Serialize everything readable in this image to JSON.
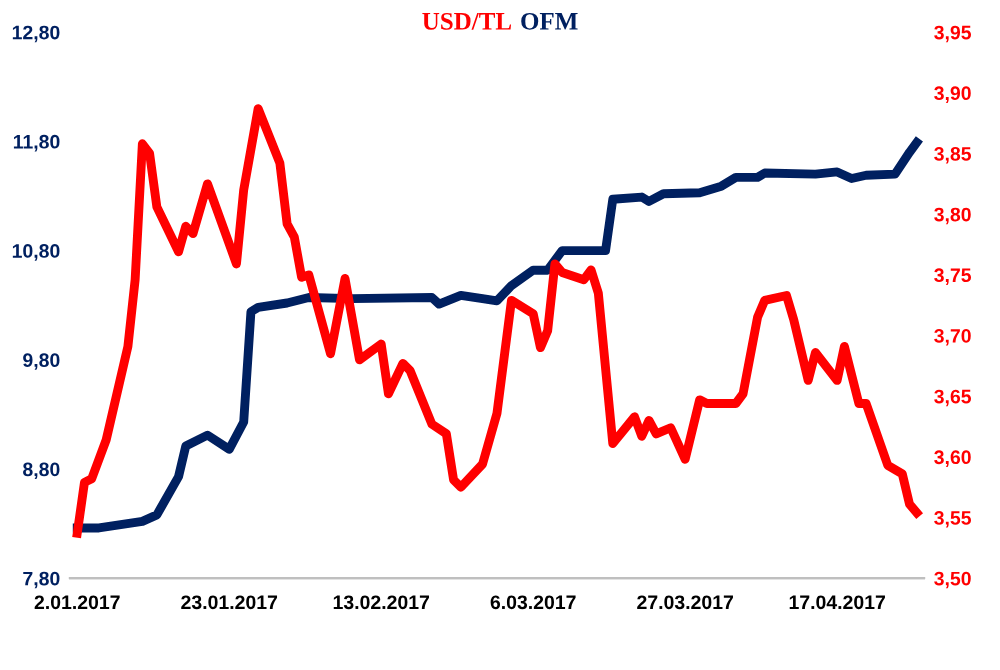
{
  "chart_data": {
    "type": "line",
    "legend": "top",
    "grid": false,
    "marker": "none",
    "line_style": "solid",
    "xlim": [
      "2017-01-01",
      "2017-04-29"
    ],
    "xticks": [
      {
        "value": "2017-01-02",
        "label": "2.01.2017"
      },
      {
        "value": "2017-01-23",
        "label": "23.01.2017"
      },
      {
        "value": "2017-02-13",
        "label": "13.02.2017"
      },
      {
        "value": "2017-03-06",
        "label": "6.03.2017"
      },
      {
        "value": "2017-03-27",
        "label": "27.03.2017"
      },
      {
        "value": "2017-04-17",
        "label": "17.04.2017"
      }
    ],
    "ylim": [
      7.8,
      12.8
    ],
    "yticks": [
      {
        "value": 7.8,
        "label": "7,80"
      },
      {
        "value": 8.8,
        "label": "8,80"
      },
      {
        "value": 9.8,
        "label": "9,80"
      },
      {
        "value": 10.8,
        "label": "10,80"
      },
      {
        "value": 11.8,
        "label": "11,80"
      },
      {
        "value": 12.8,
        "label": "12,80"
      }
    ],
    "y2lim": [
      3.5,
      3.95
    ],
    "y2ticks": [
      {
        "value": 3.5,
        "label": "3,50"
      },
      {
        "value": 3.55,
        "label": "3,55"
      },
      {
        "value": 3.6,
        "label": "3,60"
      },
      {
        "value": 3.65,
        "label": "3,65"
      },
      {
        "value": 3.7,
        "label": "3,70"
      },
      {
        "value": 3.75,
        "label": "3,75"
      },
      {
        "value": 3.8,
        "label": "3,80"
      },
      {
        "value": 3.85,
        "label": "3,85"
      },
      {
        "value": 3.9,
        "label": "3,90"
      },
      {
        "value": 3.95,
        "label": "3,95"
      }
    ],
    "series": [
      {
        "name": "USD/TL",
        "color": "#ff0000",
        "axis": "y2",
        "x": [
          "2017-01-02",
          "2017-01-03",
          "2017-01-04",
          "2017-01-06",
          "2017-01-09",
          "2017-01-10",
          "2017-01-11",
          "2017-01-12",
          "2017-01-13",
          "2017-01-16",
          "2017-01-17",
          "2017-01-18",
          "2017-01-20",
          "2017-01-24",
          "2017-01-25",
          "2017-01-27",
          "2017-01-30",
          "2017-01-31",
          "2017-02-01",
          "2017-02-02",
          "2017-02-03",
          "2017-02-06",
          "2017-02-08",
          "2017-02-10",
          "2017-02-13",
          "2017-02-14",
          "2017-02-16",
          "2017-02-17",
          "2017-02-20",
          "2017-02-22",
          "2017-02-23",
          "2017-02-24",
          "2017-02-27",
          "2017-03-01",
          "2017-03-03",
          "2017-03-06",
          "2017-03-07",
          "2017-03-08",
          "2017-03-09",
          "2017-03-10",
          "2017-03-13",
          "2017-03-14",
          "2017-03-15",
          "2017-03-17",
          "2017-03-20",
          "2017-03-21",
          "2017-03-22",
          "2017-03-23",
          "2017-03-25",
          "2017-03-27",
          "2017-03-29",
          "2017-03-30",
          "2017-04-03",
          "2017-04-04",
          "2017-04-06",
          "2017-04-07",
          "2017-04-10",
          "2017-04-11",
          "2017-04-13",
          "2017-04-14",
          "2017-04-17",
          "2017-04-18",
          "2017-04-20",
          "2017-04-21",
          "2017-04-24",
          "2017-04-26",
          "2017-04-27",
          "2017-04-28"
        ],
        "values": [
          3.537,
          3.579,
          3.582,
          3.614,
          3.691,
          3.746,
          3.858,
          3.85,
          3.806,
          3.769,
          3.79,
          3.784,
          3.825,
          3.759,
          3.82,
          3.887,
          3.842,
          3.792,
          3.781,
          3.748,
          3.75,
          3.685,
          3.747,
          3.68,
          3.693,
          3.652,
          3.677,
          3.671,
          3.627,
          3.619,
          3.581,
          3.575,
          3.594,
          3.636,
          3.729,
          3.718,
          3.69,
          3.704,
          3.759,
          3.752,
          3.746,
          3.754,
          3.735,
          3.611,
          3.633,
          3.617,
          3.63,
          3.619,
          3.624,
          3.598,
          3.647,
          3.644,
          3.644,
          3.652,
          3.715,
          3.729,
          3.733,
          3.713,
          3.663,
          3.686,
          3.663,
          3.691,
          3.644,
          3.644,
          3.593,
          3.586,
          3.561,
          3.554
        ]
      },
      {
        "name": "OFM",
        "color": "#002060",
        "axis": "y",
        "x": [
          "2017-01-02",
          "2017-01-05",
          "2017-01-11",
          "2017-01-13",
          "2017-01-16",
          "2017-01-17",
          "2017-01-20",
          "2017-01-23",
          "2017-01-25",
          "2017-01-26",
          "2017-01-27",
          "2017-01-31",
          "2017-02-03",
          "2017-02-09",
          "2017-02-20",
          "2017-02-21",
          "2017-02-24",
          "2017-02-27",
          "2017-03-01",
          "2017-03-03",
          "2017-03-06",
          "2017-03-08",
          "2017-03-10",
          "2017-03-16",
          "2017-03-17",
          "2017-03-21",
          "2017-03-22",
          "2017-03-24",
          "2017-03-29",
          "2017-04-01",
          "2017-04-03",
          "2017-04-06",
          "2017-04-07",
          "2017-04-14",
          "2017-04-17",
          "2017-04-19",
          "2017-04-21",
          "2017-04-25",
          "2017-04-27",
          "2017-04-28"
        ],
        "values": [
          8.26,
          8.26,
          8.32,
          8.38,
          8.73,
          9.01,
          9.11,
          8.98,
          9.23,
          10.24,
          10.28,
          10.32,
          10.37,
          10.36,
          10.37,
          10.31,
          10.39,
          10.36,
          10.34,
          10.48,
          10.62,
          10.62,
          10.8,
          10.8,
          11.27,
          11.29,
          11.25,
          11.32,
          11.33,
          11.39,
          11.47,
          11.47,
          11.51,
          11.5,
          11.52,
          11.46,
          11.49,
          11.5,
          11.7,
          11.79
        ]
      }
    ]
  }
}
